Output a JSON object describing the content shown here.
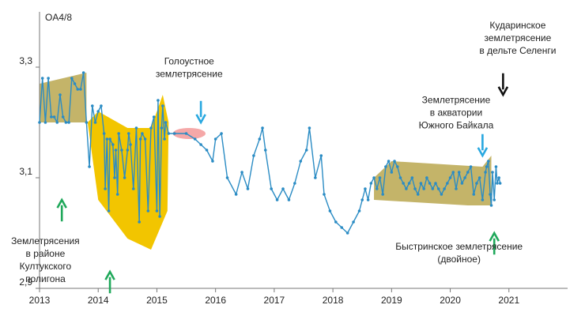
{
  "chart_data": {
    "type": "line",
    "title": "",
    "ylabel": "OA4/8",
    "xlabel": "",
    "xlim": [
      2013.0,
      2022.0
    ],
    "ylim": [
      2.9,
      3.4
    ],
    "x_ticks": [
      2013,
      2014,
      2015,
      2016,
      2017,
      2018,
      2019,
      2020,
      2021
    ],
    "y_ticks": [
      {
        "value": 2.9,
        "label": "2,9"
      },
      {
        "value": 3.1,
        "label": "3,1"
      },
      {
        "value": 3.3,
        "label": "3,3"
      }
    ],
    "grid": false,
    "legend": "none",
    "series": [
      {
        "color": "#2b8cc4",
        "points": [
          [
            2013.0,
            3.2
          ],
          [
            2013.05,
            3.28
          ],
          [
            2013.1,
            3.2
          ],
          [
            2013.15,
            3.28
          ],
          [
            2013.2,
            3.21
          ],
          [
            2013.25,
            3.21
          ],
          [
            2013.3,
            3.2
          ],
          [
            2013.35,
            3.25
          ],
          [
            2013.4,
            3.21
          ],
          [
            2013.45,
            3.2
          ],
          [
            2013.5,
            3.2
          ],
          [
            2013.55,
            3.28
          ],
          [
            2013.6,
            3.27
          ],
          [
            2013.65,
            3.26
          ],
          [
            2013.7,
            3.26
          ],
          [
            2013.75,
            3.29
          ],
          [
            2013.8,
            3.2
          ],
          [
            2013.85,
            3.12
          ],
          [
            2013.9,
            3.23
          ],
          [
            2013.95,
            3.2
          ],
          [
            2014.0,
            3.22
          ],
          [
            2014.05,
            3.23
          ],
          [
            2014.1,
            3.18
          ],
          [
            2014.12,
            3.08
          ],
          [
            2014.15,
            3.17
          ],
          [
            2014.18,
            3.04
          ],
          [
            2014.2,
            3.17
          ],
          [
            2014.25,
            3.16
          ],
          [
            2014.28,
            3.1
          ],
          [
            2014.3,
            3.15
          ],
          [
            2014.33,
            3.07
          ],
          [
            2014.35,
            3.18
          ],
          [
            2014.4,
            3.15
          ],
          [
            2014.45,
            3.1
          ],
          [
            2014.5,
            3.15
          ],
          [
            2014.52,
            3.18
          ],
          [
            2014.55,
            3.16
          ],
          [
            2014.6,
            3.08
          ],
          [
            2014.65,
            3.19
          ],
          [
            2014.7,
            3.02
          ],
          [
            2014.72,
            3.17
          ],
          [
            2014.75,
            3.18
          ],
          [
            2014.8,
            3.17
          ],
          [
            2014.85,
            3.04
          ],
          [
            2014.9,
            3.19
          ],
          [
            2014.95,
            3.21
          ],
          [
            2015.0,
            3.04
          ],
          [
            2015.02,
            3.24
          ],
          [
            2015.05,
            3.03
          ],
          [
            2015.08,
            3.19
          ],
          [
            2015.1,
            3.23
          ],
          [
            2015.13,
            3.17
          ],
          [
            2015.15,
            3.2
          ],
          [
            2015.2,
            3.18
          ],
          [
            2015.3,
            3.18
          ],
          [
            2015.5,
            3.18
          ],
          [
            2015.65,
            3.17
          ],
          [
            2015.75,
            3.16
          ],
          [
            2015.85,
            3.15
          ],
          [
            2015.95,
            3.13
          ],
          [
            2016.0,
            3.17
          ],
          [
            2016.1,
            3.18
          ],
          [
            2016.2,
            3.1
          ],
          [
            2016.35,
            3.07
          ],
          [
            2016.45,
            3.11
          ],
          [
            2016.55,
            3.08
          ],
          [
            2016.65,
            3.14
          ],
          [
            2016.75,
            3.17
          ],
          [
            2016.8,
            3.19
          ],
          [
            2016.85,
            3.15
          ],
          [
            2016.95,
            3.08
          ],
          [
            2017.05,
            3.06
          ],
          [
            2017.15,
            3.08
          ],
          [
            2017.25,
            3.06
          ],
          [
            2017.35,
            3.09
          ],
          [
            2017.45,
            3.13
          ],
          [
            2017.55,
            3.15
          ],
          [
            2017.6,
            3.19
          ],
          [
            2017.7,
            3.1
          ],
          [
            2017.8,
            3.14
          ],
          [
            2017.85,
            3.07
          ],
          [
            2017.95,
            3.04
          ],
          [
            2018.05,
            3.02
          ],
          [
            2018.15,
            3.01
          ],
          [
            2018.25,
            3.0
          ],
          [
            2018.35,
            3.02
          ],
          [
            2018.45,
            3.04
          ],
          [
            2018.5,
            3.06
          ],
          [
            2018.55,
            3.08
          ],
          [
            2018.6,
            3.06
          ],
          [
            2018.65,
            3.09
          ],
          [
            2018.7,
            3.1
          ],
          [
            2018.75,
            3.08
          ],
          [
            2018.8,
            3.1
          ],
          [
            2018.85,
            3.07
          ],
          [
            2018.9,
            3.12
          ],
          [
            2018.95,
            3.13
          ],
          [
            2019.0,
            3.11
          ],
          [
            2019.05,
            3.13
          ],
          [
            2019.1,
            3.12
          ],
          [
            2019.15,
            3.1
          ],
          [
            2019.2,
            3.09
          ],
          [
            2019.25,
            3.08
          ],
          [
            2019.3,
            3.09
          ],
          [
            2019.35,
            3.1
          ],
          [
            2019.4,
            3.08
          ],
          [
            2019.45,
            3.07
          ],
          [
            2019.5,
            3.09
          ],
          [
            2019.55,
            3.08
          ],
          [
            2019.6,
            3.1
          ],
          [
            2019.65,
            3.09
          ],
          [
            2019.7,
            3.08
          ],
          [
            2019.75,
            3.09
          ],
          [
            2019.8,
            3.08
          ],
          [
            2019.85,
            3.07
          ],
          [
            2019.9,
            3.08
          ],
          [
            2019.95,
            3.09
          ],
          [
            2020.0,
            3.1
          ],
          [
            2020.05,
            3.11
          ],
          [
            2020.1,
            3.08
          ],
          [
            2020.15,
            3.11
          ],
          [
            2020.2,
            3.09
          ],
          [
            2020.25,
            3.1
          ],
          [
            2020.3,
            3.11
          ],
          [
            2020.35,
            3.12
          ],
          [
            2020.4,
            3.07
          ],
          [
            2020.45,
            3.09
          ],
          [
            2020.5,
            3.1
          ],
          [
            2020.55,
            3.06
          ],
          [
            2020.6,
            3.11
          ],
          [
            2020.62,
            3.12
          ],
          [
            2020.65,
            3.13
          ],
          [
            2020.68,
            3.07
          ],
          [
            2020.7,
            3.05
          ],
          [
            2020.72,
            3.11
          ],
          [
            2020.75,
            3.06
          ],
          [
            2020.78,
            3.12
          ],
          [
            2020.8,
            3.09
          ],
          [
            2020.83,
            3.1
          ],
          [
            2020.85,
            3.09
          ]
        ]
      }
    ],
    "shaded_regions": [
      {
        "color": "#c4b469",
        "polygon": [
          [
            2013.0,
            3.27
          ],
          [
            2013.8,
            3.29
          ],
          [
            2013.8,
            3.2
          ],
          [
            2013.0,
            3.2
          ]
        ]
      },
      {
        "color": "#f2c500",
        "polygon": [
          [
            2013.82,
            3.2
          ],
          [
            2014.0,
            3.22
          ],
          [
            2014.5,
            3.19
          ],
          [
            2014.9,
            3.19
          ],
          [
            2015.1,
            3.25
          ],
          [
            2015.2,
            3.2
          ],
          [
            2015.18,
            3.04
          ],
          [
            2014.9,
            2.97
          ],
          [
            2014.5,
            2.99
          ],
          [
            2014.0,
            3.06
          ]
        ]
      },
      {
        "color": "#c4b469",
        "polygon": [
          [
            2018.7,
            3.1
          ],
          [
            2019.0,
            3.13
          ],
          [
            2020.55,
            3.12
          ],
          [
            2020.7,
            3.14
          ],
          [
            2020.7,
            3.05
          ],
          [
            2020.3,
            3.05
          ],
          [
            2018.7,
            3.06
          ]
        ]
      },
      {
        "color": "#f5a8a8",
        "ellipse": {
          "cx": 2015.55,
          "cy": 3.18,
          "rx": 0.28,
          "ry": 0.01
        }
      }
    ],
    "annotations": [
      {
        "lines": [
          "Голоустное",
          "землетрясение"
        ],
        "arrow": "down",
        "arrow_color": "#29a8e0",
        "at": [
          2015.75,
          3.2
        ],
        "text_at": [
          2015.55,
          3.305
        ]
      },
      {
        "lines": [
          "Кударинское",
          "землетрясение",
          "в дельте Селенги"
        ],
        "arrow": "down",
        "arrow_color": "#111111",
        "at": [
          2020.9,
          3.25
        ],
        "text_at": [
          2021.15,
          3.37
        ]
      },
      {
        "lines": [
          "Землетрясение",
          "в акватории",
          "Южного Байкала"
        ],
        "arrow": "down",
        "arrow_color": "#29a8e0",
        "at": [
          2020.55,
          3.14
        ],
        "text_at": [
          2020.1,
          3.235
        ]
      },
      {
        "lines": [
          "Землетрясения",
          "в районе",
          "Култукского",
          "полигона"
        ],
        "arrow": "up",
        "arrow_color": "#1fa85a",
        "at": [
          2014.2,
          2.93
        ],
        "text_at": [
          2013.1,
          2.98
        ]
      },
      {
        "lines": [],
        "arrow": "up",
        "arrow_color": "#1fa85a",
        "at": [
          2013.38,
          3.06
        ],
        "text_at": null
      },
      {
        "lines": [
          "Быстринское землетрясение",
          "(двойное)"
        ],
        "arrow": "up",
        "arrow_color": "#1fa85a",
        "at": [
          2020.75,
          3.0
        ],
        "text_at": [
          2020.15,
          2.97
        ]
      }
    ]
  }
}
